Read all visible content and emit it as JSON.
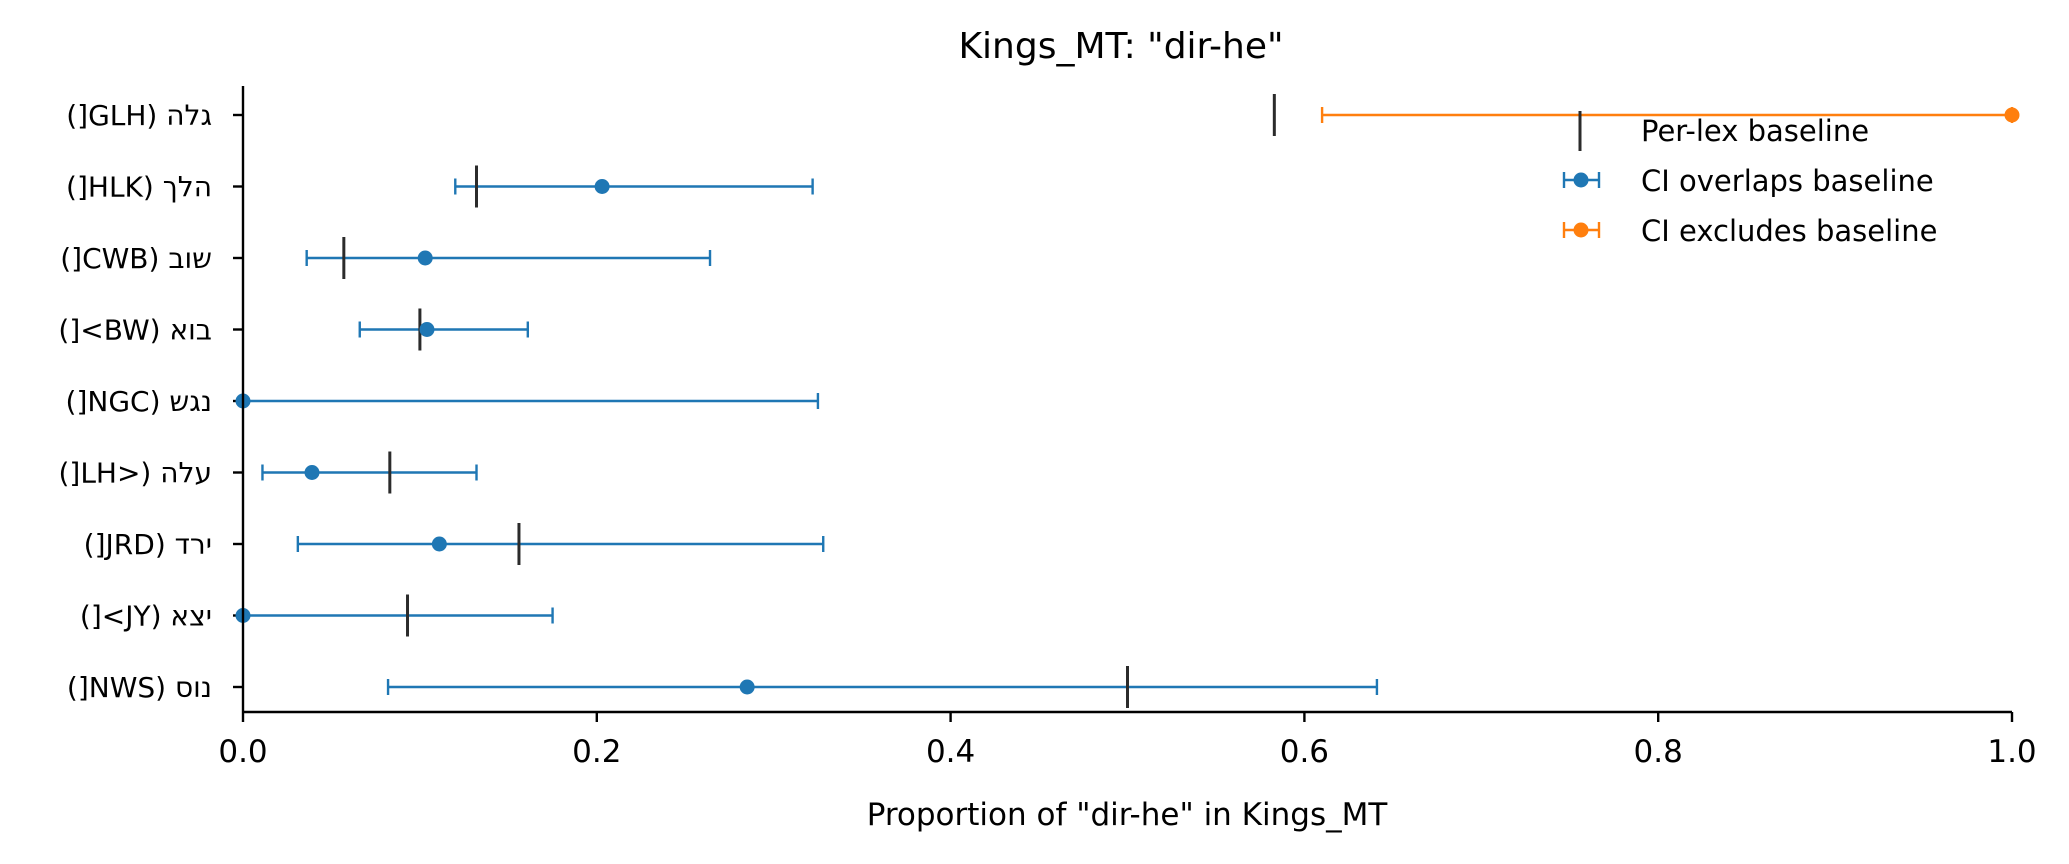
{
  "chart_data": {
    "type": "errorbar",
    "title": "Kings_MT: \"dir-he\"",
    "xlabel": "Proportion of \"dir-he\" in Kings_MT",
    "ylabel": "",
    "xlim": [
      0.0,
      1.0
    ],
    "xticks": [
      "0.0",
      "0.2",
      "0.4",
      "0.6",
      "0.8",
      "1.0"
    ],
    "grid": false,
    "legend_position": "top-right",
    "legend": {
      "baseline": "Per-lex baseline",
      "overlaps": "CI overlaps baseline",
      "excludes": "CI excludes baseline"
    },
    "colors": {
      "overlaps": "#1f77b4",
      "excludes": "#ff7f0e",
      "baseline": "#2b2b2b"
    },
    "rows": [
      {
        "label": "גלה (GLH[)",
        "value": 1.0,
        "ci_low": 0.61,
        "ci_high": 1.0,
        "baseline": 0.583,
        "status": "excludes"
      },
      {
        "label": "הלך (HLK[)",
        "value": 0.203,
        "ci_low": 0.12,
        "ci_high": 0.322,
        "baseline": 0.132,
        "status": "overlaps"
      },
      {
        "label": "שוב (CWB[)",
        "value": 0.103,
        "ci_low": 0.036,
        "ci_high": 0.264,
        "baseline": 0.057,
        "status": "overlaps"
      },
      {
        "label": "בוא (BW>[)",
        "value": 0.104,
        "ci_low": 0.066,
        "ci_high": 0.161,
        "baseline": 0.1,
        "status": "overlaps"
      },
      {
        "label": "נגש (NGC[)",
        "value": 0.0,
        "ci_low": 0.0,
        "ci_high": 0.325,
        "baseline": null,
        "status": "overlaps"
      },
      {
        "label": "עלה (<LH[)",
        "value": 0.039,
        "ci_low": 0.011,
        "ci_high": 0.132,
        "baseline": 0.083,
        "status": "overlaps"
      },
      {
        "label": "ירד (JRD[)",
        "value": 0.111,
        "ci_low": 0.031,
        "ci_high": 0.328,
        "baseline": 0.156,
        "status": "overlaps"
      },
      {
        "label": "יצא (JY>[)",
        "value": 0.0,
        "ci_low": 0.0,
        "ci_high": 0.175,
        "baseline": 0.093,
        "status": "overlaps"
      },
      {
        "label": "נוס (NWS[)",
        "value": 0.285,
        "ci_low": 0.082,
        "ci_high": 0.641,
        "baseline": 0.5,
        "status": "overlaps"
      }
    ]
  }
}
